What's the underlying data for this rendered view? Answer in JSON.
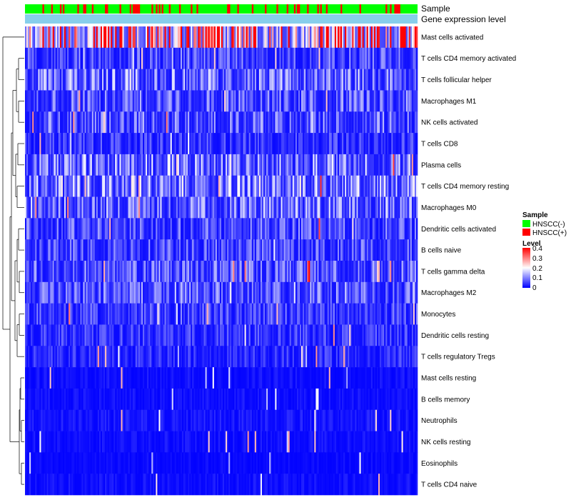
{
  "chart_data": {
    "type": "heatmap",
    "title": "",
    "n_samples": 270,
    "annotation_tracks": [
      {
        "label": "Sample"
      },
      {
        "label": "Gene expression level"
      }
    ],
    "rows": [
      {
        "name": "Mast cells activated",
        "mean": 0.33
      },
      {
        "name": "T cells CD4 memory activated",
        "mean": 0.07
      },
      {
        "name": "T cells follicular helper",
        "mean": 0.1
      },
      {
        "name": "Macrophages M1",
        "mean": 0.08
      },
      {
        "name": "NK cells activated",
        "mean": 0.08
      },
      {
        "name": "T cells CD8",
        "mean": 0.05
      },
      {
        "name": "Plasma cells",
        "mean": 0.11
      },
      {
        "name": "T cells CD4 memory resting",
        "mean": 0.12
      },
      {
        "name": "Macrophages M0",
        "mean": 0.1
      },
      {
        "name": "Dendritic cells activated",
        "mean": 0.07
      },
      {
        "name": "B cells naive",
        "mean": 0.07
      },
      {
        "name": "T cells gamma delta",
        "mean": 0.08
      },
      {
        "name": "Macrophages M2",
        "mean": 0.08
      },
      {
        "name": "Monocytes",
        "mean": 0.06
      },
      {
        "name": "Dendritic cells resting",
        "mean": 0.05
      },
      {
        "name": "T cells regulatory  Tregs",
        "mean": 0.04
      },
      {
        "name": "Mast cells resting",
        "mean": 0.015
      },
      {
        "name": "B cells memory",
        "mean": 0.015
      },
      {
        "name": "Neutrophils",
        "mean": 0.02
      },
      {
        "name": "NK cells resting",
        "mean": 0.015
      },
      {
        "name": "Eosinophils",
        "mean": 0.01
      },
      {
        "name": "T cells CD4 naive",
        "mean": 0.015
      }
    ],
    "legend": {
      "sample_title": "Sample",
      "sample_items": [
        {
          "label": "HNSCC(-)",
          "color": "#00ff00"
        },
        {
          "label": "HNSCC(+)",
          "color": "#ff0000"
        }
      ],
      "level_title": "Level",
      "level_ticks": [
        "0.4",
        "0.3",
        "0.2",
        "0.1",
        "0"
      ],
      "level_range": [
        0,
        0.4
      ]
    },
    "colors": {
      "low": "#0000ff",
      "mid": "#ffffff",
      "high": "#ff0000",
      "expression_track": "#87ceeb"
    }
  }
}
